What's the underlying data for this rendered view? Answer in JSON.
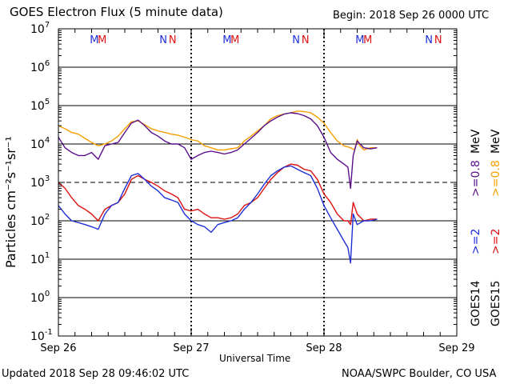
{
  "header": {
    "title": "GOES Electron Flux (5 minute data)",
    "begin": "Begin: 2018 Sep 26 0000 UTC"
  },
  "footer": {
    "updated": "Updated 2018 Sep 28 09:46:02 UTC",
    "source": "NOAA/SWPC Boulder, CO USA"
  },
  "legend": {
    "goes14": "GOES14",
    "goes15": "GOES15",
    "e2_14": ">=2",
    "e2_15": ">=2",
    "e08_14": ">=0.8",
    "e08_15": ">=0.8",
    "unit_mev_low": "MeV",
    "unit_mev_high": "MeV",
    "colors": {
      "goes14_e2": "#1f2fd8",
      "goes15_e2": "#dd1111",
      "goes14_e08": "#5a0f8a",
      "goes15_e08": "#f5a000"
    }
  },
  "chart_data": {
    "type": "line",
    "title": "GOES Electron Flux (5 minute data)",
    "xlabel": "Universal Time",
    "ylabel": "Particles cm⁻²s⁻¹sr⁻¹",
    "yscale": "log",
    "xlim": [
      0,
      3
    ],
    "ylim_exp": [
      -1,
      7
    ],
    "x_ticks": [
      {
        "x": 0,
        "label": "Sep 26"
      },
      {
        "x": 1,
        "label": "Sep 27"
      },
      {
        "x": 2,
        "label": "Sep 28"
      },
      {
        "x": 3,
        "label": "Sep 29"
      }
    ],
    "y_ticks": [
      {
        "exp": 7,
        "base": "10",
        "sup": "7"
      },
      {
        "exp": 6,
        "base": "10",
        "sup": "6"
      },
      {
        "exp": 5,
        "base": "10",
        "sup": "5"
      },
      {
        "exp": 4,
        "base": "10",
        "sup": "4"
      },
      {
        "exp": 3,
        "base": "10",
        "sup": "3"
      },
      {
        "exp": 2,
        "base": "10",
        "sup": "2"
      },
      {
        "exp": 1,
        "base": "10",
        "sup": "1"
      },
      {
        "exp": 0,
        "base": "10",
        "sup": "0"
      },
      {
        "exp": -1,
        "base": "10",
        "sup": "-1"
      }
    ],
    "reference_lines": [
      {
        "y_exp": 3,
        "style": "dashed"
      }
    ],
    "day_markers": [
      {
        "label": "M",
        "x": 0.27,
        "color": "#1f2fd8"
      },
      {
        "label": "M",
        "x": 0.33,
        "color": "#dd1111"
      },
      {
        "label": "N",
        "x": 0.79,
        "color": "#1f2fd8"
      },
      {
        "label": "N",
        "x": 0.86,
        "color": "#dd1111"
      },
      {
        "label": "M",
        "x": 1.27,
        "color": "#1f2fd8"
      },
      {
        "label": "M",
        "x": 1.33,
        "color": "#dd1111"
      },
      {
        "label": "N",
        "x": 1.79,
        "color": "#1f2fd8"
      },
      {
        "label": "N",
        "x": 1.86,
        "color": "#dd1111"
      },
      {
        "label": "M",
        "x": 2.27,
        "color": "#1f2fd8"
      },
      {
        "label": "M",
        "x": 2.33,
        "color": "#dd1111"
      },
      {
        "label": "N",
        "x": 2.79,
        "color": "#1f2fd8"
      },
      {
        "label": "N",
        "x": 2.86,
        "color": "#dd1111"
      }
    ],
    "series": [
      {
        "name": "GOES15 >=0.8 MeV",
        "color": "#f5a000",
        "x": [
          0.0,
          0.05,
          0.1,
          0.15,
          0.2,
          0.25,
          0.3,
          0.35,
          0.4,
          0.45,
          0.5,
          0.55,
          0.6,
          0.65,
          0.7,
          0.75,
          0.8,
          0.85,
          0.9,
          0.95,
          1.0,
          1.05,
          1.1,
          1.15,
          1.2,
          1.25,
          1.3,
          1.35,
          1.4,
          1.45,
          1.5,
          1.55,
          1.6,
          1.65,
          1.7,
          1.75,
          1.8,
          1.85,
          1.9,
          1.95,
          2.0,
          2.05,
          2.1,
          2.15,
          2.2,
          2.23,
          2.25,
          2.27,
          2.3,
          2.35,
          2.4
        ],
        "y": [
          30000,
          25000,
          20000,
          18000,
          14000,
          11000,
          9000,
          10000,
          12000,
          16000,
          25000,
          38000,
          40000,
          32000,
          25000,
          22000,
          20000,
          18000,
          17000,
          15000,
          13000,
          12000,
          9000,
          8000,
          7000,
          7000,
          7500,
          8000,
          12000,
          16000,
          22000,
          30000,
          45000,
          55000,
          60000,
          65000,
          72000,
          70000,
          65000,
          50000,
          35000,
          20000,
          12000,
          9000,
          8000,
          7000,
          13000,
          9000,
          7000,
          8000,
          8000
        ]
      },
      {
        "name": "GOES14 >=0.8 MeV",
        "color": "#5a0f8a",
        "x": [
          0.0,
          0.05,
          0.1,
          0.15,
          0.2,
          0.25,
          0.3,
          0.35,
          0.4,
          0.45,
          0.5,
          0.55,
          0.6,
          0.65,
          0.7,
          0.75,
          0.8,
          0.85,
          0.9,
          0.95,
          1.0,
          1.05,
          1.1,
          1.15,
          1.2,
          1.25,
          1.3,
          1.35,
          1.4,
          1.45,
          1.5,
          1.55,
          1.6,
          1.65,
          1.7,
          1.75,
          1.8,
          1.85,
          1.9,
          1.95,
          2.0,
          2.05,
          2.1,
          2.15,
          2.18,
          2.2,
          2.22,
          2.25,
          2.3,
          2.35,
          2.4
        ],
        "y": [
          15000,
          8000,
          6000,
          5000,
          5000,
          6000,
          4000,
          9000,
          10000,
          11000,
          20000,
          35000,
          42000,
          30000,
          20000,
          16000,
          12000,
          10000,
          10000,
          8000,
          4000,
          5000,
          6000,
          6500,
          6000,
          5500,
          6000,
          7000,
          10000,
          14000,
          20000,
          30000,
          40000,
          50000,
          60000,
          65000,
          62000,
          55000,
          45000,
          30000,
          15000,
          6000,
          4000,
          3000,
          2500,
          700,
          5000,
          12000,
          8000,
          7500,
          8000
        ]
      },
      {
        "name": "GOES15 >=2 MeV",
        "color": "#dd1111",
        "x": [
          0.0,
          0.05,
          0.1,
          0.15,
          0.2,
          0.25,
          0.3,
          0.35,
          0.4,
          0.45,
          0.5,
          0.55,
          0.6,
          0.65,
          0.7,
          0.75,
          0.8,
          0.85,
          0.9,
          0.95,
          1.0,
          1.05,
          1.1,
          1.15,
          1.2,
          1.25,
          1.3,
          1.35,
          1.4,
          1.45,
          1.5,
          1.55,
          1.6,
          1.65,
          1.7,
          1.75,
          1.8,
          1.85,
          1.9,
          1.95,
          2.0,
          2.05,
          2.1,
          2.15,
          2.18,
          2.2,
          2.22,
          2.25,
          2.3,
          2.35,
          2.4
        ],
        "y": [
          1000,
          700,
          400,
          250,
          200,
          150,
          100,
          200,
          250,
          300,
          500,
          1200,
          1500,
          1200,
          1000,
          800,
          600,
          500,
          400,
          200,
          180,
          200,
          150,
          120,
          120,
          110,
          120,
          150,
          250,
          300,
          400,
          700,
          1200,
          1800,
          2500,
          3000,
          2800,
          2200,
          2000,
          1200,
          500,
          300,
          150,
          100,
          100,
          80,
          300,
          150,
          100,
          110,
          110
        ]
      },
      {
        "name": "GOES14 >=2 MeV",
        "color": "#1f2fd8",
        "x": [
          0.0,
          0.05,
          0.1,
          0.15,
          0.2,
          0.25,
          0.3,
          0.35,
          0.4,
          0.45,
          0.5,
          0.55,
          0.6,
          0.65,
          0.7,
          0.75,
          0.8,
          0.85,
          0.9,
          0.95,
          1.0,
          1.05,
          1.1,
          1.15,
          1.2,
          1.25,
          1.3,
          1.35,
          1.4,
          1.45,
          1.5,
          1.55,
          1.6,
          1.65,
          1.7,
          1.75,
          1.8,
          1.85,
          1.9,
          1.95,
          2.0,
          2.05,
          2.1,
          2.15,
          2.18,
          2.2,
          2.22,
          2.25,
          2.3,
          2.35,
          2.4
        ],
        "y": [
          250,
          150,
          100,
          90,
          80,
          70,
          60,
          150,
          250,
          300,
          700,
          1500,
          1700,
          1200,
          800,
          600,
          400,
          350,
          300,
          150,
          100,
          80,
          70,
          50,
          80,
          90,
          100,
          120,
          200,
          300,
          500,
          900,
          1500,
          2000,
          2500,
          2700,
          2200,
          1800,
          1500,
          700,
          250,
          120,
          60,
          30,
          20,
          8,
          150,
          80,
          100,
          100,
          110
        ]
      }
    ]
  }
}
